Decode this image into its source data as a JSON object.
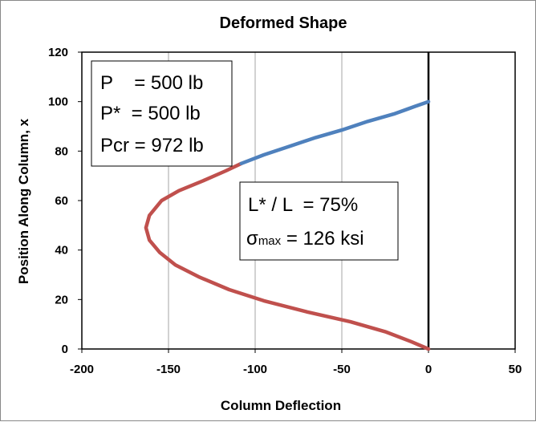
{
  "chart_data": {
    "type": "line",
    "title": "Deformed Shape",
    "xlabel": "Column Deflection",
    "ylabel": "Position Along Column, x",
    "xlim": [
      -200,
      50
    ],
    "ylim": [
      0,
      120
    ],
    "x_ticks": [
      "-200",
      "-150",
      "-100",
      "-50",
      "0",
      "50"
    ],
    "y_ticks": [
      "0",
      "20",
      "40",
      "60",
      "80",
      "100",
      "120"
    ],
    "grid": "vertical",
    "colors": {
      "red": "#c0504d",
      "blue": "#4f81bd",
      "axis": "#000000",
      "grid": "#a6a6a6"
    },
    "series": [
      {
        "color": "#c0504d",
        "x": [
          0,
          -10,
          -25,
          -45,
          -70,
          -95,
          -115,
          -132,
          -146,
          -155,
          -161,
          -163,
          -161,
          -154,
          -144,
          -130,
          -117,
          -108
        ],
        "y": [
          0,
          3,
          7,
          11,
          15,
          19.5,
          24,
          29,
          34,
          39,
          44,
          49,
          54,
          60,
          64,
          68,
          72,
          75
        ]
      },
      {
        "color": "#4f81bd",
        "x": [
          -108,
          -95,
          -80,
          -65,
          -50,
          -35,
          -20,
          -8,
          0
        ],
        "y": [
          75,
          78.5,
          82,
          85.5,
          88.5,
          92,
          95,
          98,
          100
        ]
      }
    ],
    "annotations": {
      "box1": {
        "line1": "P    = 500 lb",
        "line2": "P*  = 500 lb",
        "line3": "Pcr = 972 lb"
      },
      "box2": {
        "line1": "L* / L  = 75%",
        "sigma": "σ",
        "sigma_sub": "max",
        "line2_rest": " = 126 ksi"
      }
    }
  }
}
